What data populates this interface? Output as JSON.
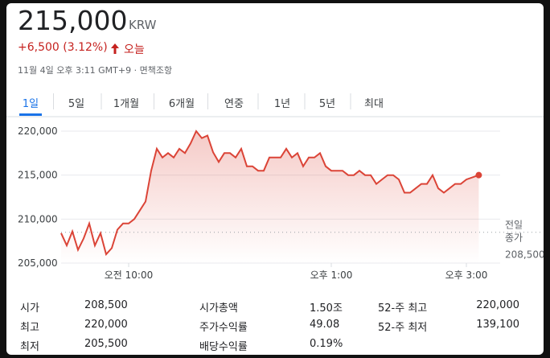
{
  "header": {
    "price": "215,000",
    "currency": "KRW",
    "change": "+6,500 (3.12%)",
    "period": "오늘",
    "timestamp": "11월 4일 오후 3:11 GMT+9 · 면책조항"
  },
  "tabs": [
    "1일",
    "5일",
    "1개월",
    "6개월",
    "연중",
    "1년",
    "5년",
    "최대"
  ],
  "selected_tab": 0,
  "chart_data": {
    "type": "line",
    "color": "#db4437",
    "x": [
      540,
      545,
      550,
      555,
      560,
      565,
      570,
      575,
      580,
      585,
      590,
      595,
      600,
      605,
      610,
      615,
      620,
      625,
      630,
      635,
      640,
      645,
      650,
      655,
      660,
      665,
      670,
      675,
      680,
      685,
      690,
      695,
      700,
      705,
      710,
      715,
      720,
      725,
      730,
      735,
      740,
      745,
      750,
      755,
      760,
      765,
      770,
      775,
      780,
      785,
      790,
      795,
      800,
      805,
      810,
      815,
      820,
      825,
      830,
      835,
      840,
      845,
      850,
      855,
      860,
      865,
      870,
      875,
      880,
      885,
      890,
      895,
      900,
      911
    ],
    "values": [
      208400,
      207000,
      208600,
      206500,
      207800,
      209500,
      207000,
      208400,
      206000,
      206700,
      208800,
      209500,
      209500,
      210000,
      211000,
      212000,
      215500,
      218000,
      217000,
      217500,
      217000,
      218000,
      217500,
      218600,
      220000,
      219200,
      219500,
      217600,
      216500,
      217500,
      217500,
      217000,
      218000,
      216000,
      216000,
      215500,
      215500,
      217000,
      217000,
      217000,
      218000,
      217000,
      217500,
      216000,
      217000,
      217000,
      217500,
      216000,
      215500,
      215500,
      215500,
      215000,
      215000,
      215500,
      215000,
      215000,
      214000,
      214500,
      215000,
      215000,
      214500,
      213000,
      213000,
      213500,
      214000,
      214000,
      215000,
      213500,
      213000,
      213500,
      214000,
      214000,
      214500,
      215000
    ],
    "xlim": [
      540,
      930
    ],
    "ylim": [
      205000,
      220000
    ],
    "yticks": [
      {
        "value": 220000,
        "label": "220,000"
      },
      {
        "value": 215000,
        "label": "215,000"
      },
      {
        "value": 210000,
        "label": "210,000"
      },
      {
        "value": 205000,
        "label": "205,000"
      }
    ],
    "xticks": [
      {
        "value": 600,
        "label": "오전 10:00"
      },
      {
        "value": 780,
        "label": "오후 1:00"
      },
      {
        "value": 900,
        "label": "오후 3:00"
      }
    ],
    "grid": true,
    "previous_close": {
      "value": 208500,
      "label": "208,500"
    },
    "previous_close_title": [
      "전일",
      "종가"
    ]
  },
  "stats": [
    [
      "시가",
      "208,500"
    ],
    [
      "최고",
      "220,000"
    ],
    [
      "최저",
      "205,500"
    ],
    [
      "시가총액",
      "1.50조"
    ],
    [
      "주가수익률",
      "49.08"
    ],
    [
      "배당수익률",
      "0.19%"
    ],
    [
      "52-주 최고",
      "220,000"
    ],
    [
      "52-주 최저",
      "139,100"
    ]
  ]
}
